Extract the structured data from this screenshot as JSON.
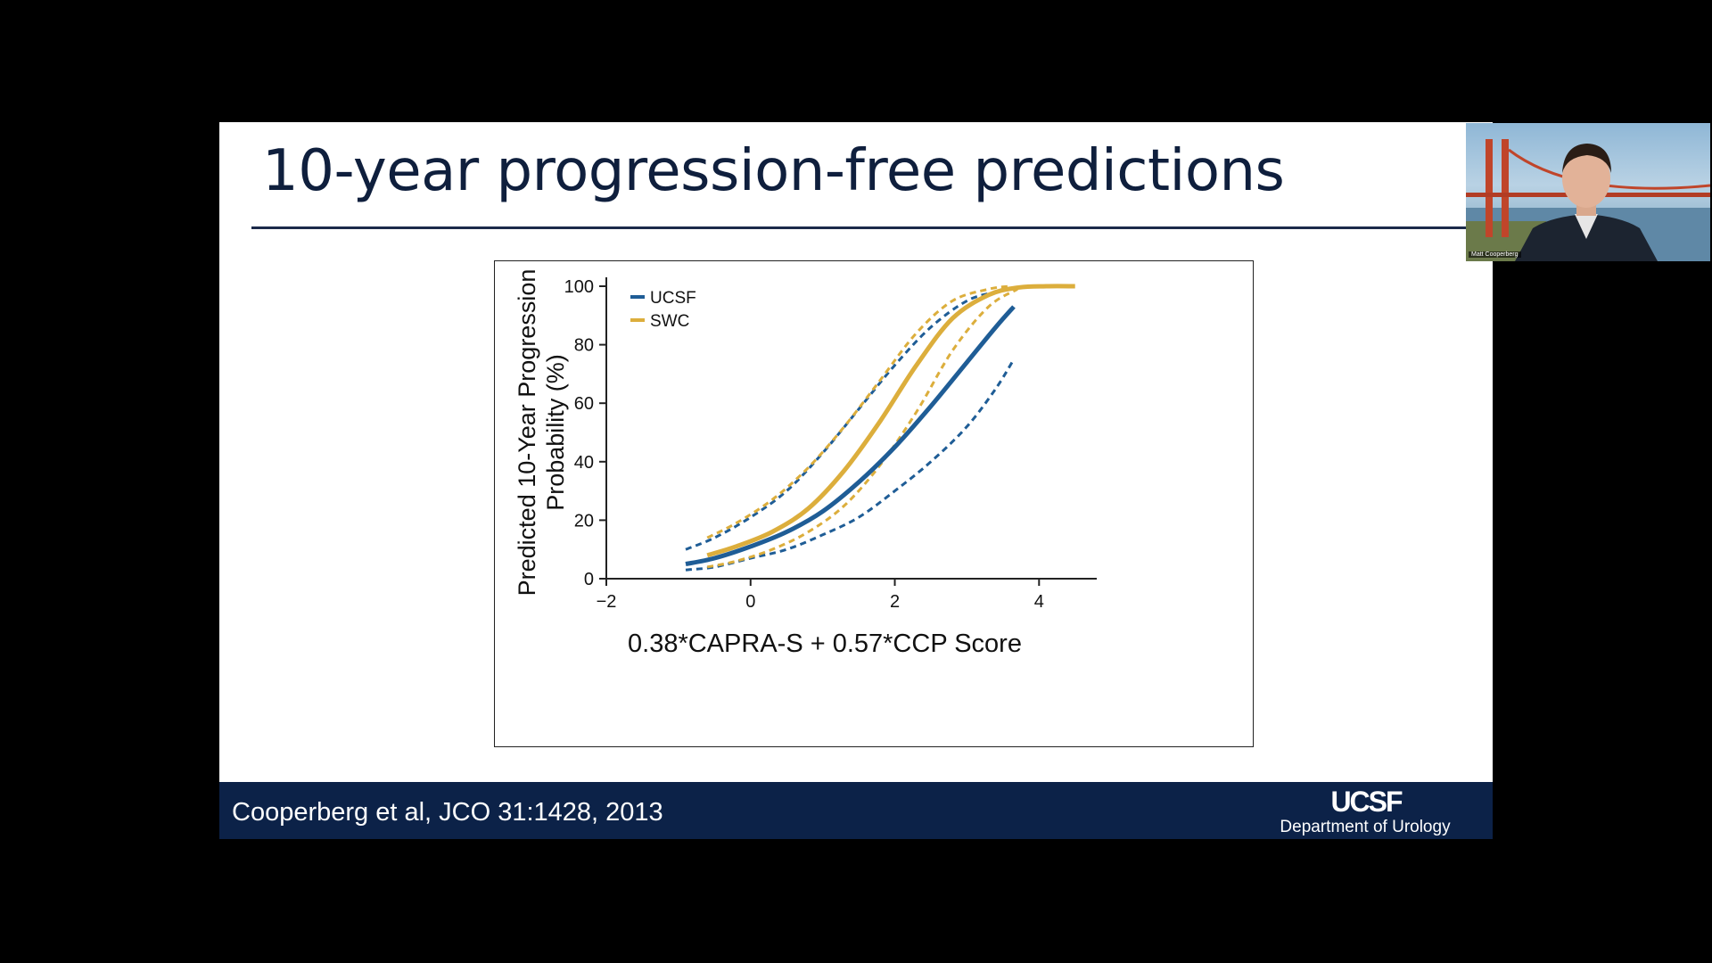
{
  "slide": {
    "title": "10-year progression-free predictions",
    "citation": "Cooperberg et al, JCO 31:1428, 2013",
    "logo_text": "UCSF",
    "department": "Department of Urology"
  },
  "webcam": {
    "participant_name": "Matt Cooperberg"
  },
  "colors": {
    "ucsf": "#1f5d96",
    "swc": "#dcae3c",
    "footer": "#0c2248",
    "title": "#0f1f3d"
  },
  "chart_data": {
    "type": "line",
    "xlabel": "0.38*CAPRA-S + 0.57*CCP Score",
    "ylabel_lines": [
      "Predicted 10-Year Progression",
      "Probability (%)"
    ],
    "xlim": [
      -2,
      4.8
    ],
    "ylim": [
      0,
      100
    ],
    "xticks": [
      -2,
      0,
      2,
      4
    ],
    "yticks": [
      0,
      20,
      40,
      60,
      80,
      100
    ],
    "legend": {
      "position": "top-left",
      "entries": [
        "UCSF",
        "SWC"
      ]
    },
    "series": [
      {
        "name": "UCSF",
        "role": "estimate",
        "color": "#1f5d96",
        "style": "solid",
        "x": [
          -0.9,
          -0.5,
          0,
          0.5,
          1.0,
          1.5,
          2.0,
          2.5,
          3.0,
          3.4,
          3.65
        ],
        "y": [
          5,
          7,
          11,
          16,
          23,
          33,
          45,
          59,
          74,
          86,
          93
        ]
      },
      {
        "name": "UCSF upper CI",
        "role": "ci",
        "color": "#1f5d96",
        "style": "dashed",
        "x": [
          -0.9,
          -0.5,
          0,
          0.5,
          1.0,
          1.5,
          2.0,
          2.5,
          3.0,
          3.4,
          3.65
        ],
        "y": [
          10,
          14,
          21,
          30,
          43,
          58,
          73,
          86,
          95,
          98,
          99
        ]
      },
      {
        "name": "UCSF lower CI",
        "role": "ci",
        "color": "#1f5d96",
        "style": "dashed",
        "x": [
          -0.9,
          -0.5,
          0,
          0.5,
          1.0,
          1.5,
          2.0,
          2.5,
          3.0,
          3.4,
          3.65
        ],
        "y": [
          3,
          4,
          7,
          10,
          15,
          21,
          30,
          40,
          52,
          65,
          75
        ]
      },
      {
        "name": "SWC",
        "role": "estimate",
        "color": "#dcae3c",
        "style": "solid",
        "x": [
          -0.6,
          -0.2,
          0.3,
          0.8,
          1.3,
          1.8,
          2.3,
          2.8,
          3.3,
          3.7,
          4.1,
          4.5
        ],
        "y": [
          8,
          11,
          16,
          24,
          37,
          54,
          73,
          89,
          97,
          99.5,
          100,
          100
        ]
      },
      {
        "name": "SWC upper CI",
        "role": "ci",
        "color": "#dcae3c",
        "style": "dashed",
        "x": [
          -0.6,
          -0.2,
          0.3,
          0.8,
          1.3,
          1.8,
          2.3,
          2.8,
          3.3,
          3.6
        ],
        "y": [
          14,
          19,
          27,
          38,
          52,
          68,
          84,
          95,
          99,
          100
        ]
      },
      {
        "name": "SWC lower CI",
        "role": "ci",
        "color": "#dcae3c",
        "style": "dashed",
        "x": [
          -0.6,
          -0.2,
          0.3,
          0.8,
          1.3,
          1.8,
          2.3,
          2.8,
          3.3,
          3.7
        ],
        "y": [
          4,
          6,
          10,
          16,
          25,
          39,
          57,
          78,
          93,
          99
        ]
      }
    ]
  }
}
